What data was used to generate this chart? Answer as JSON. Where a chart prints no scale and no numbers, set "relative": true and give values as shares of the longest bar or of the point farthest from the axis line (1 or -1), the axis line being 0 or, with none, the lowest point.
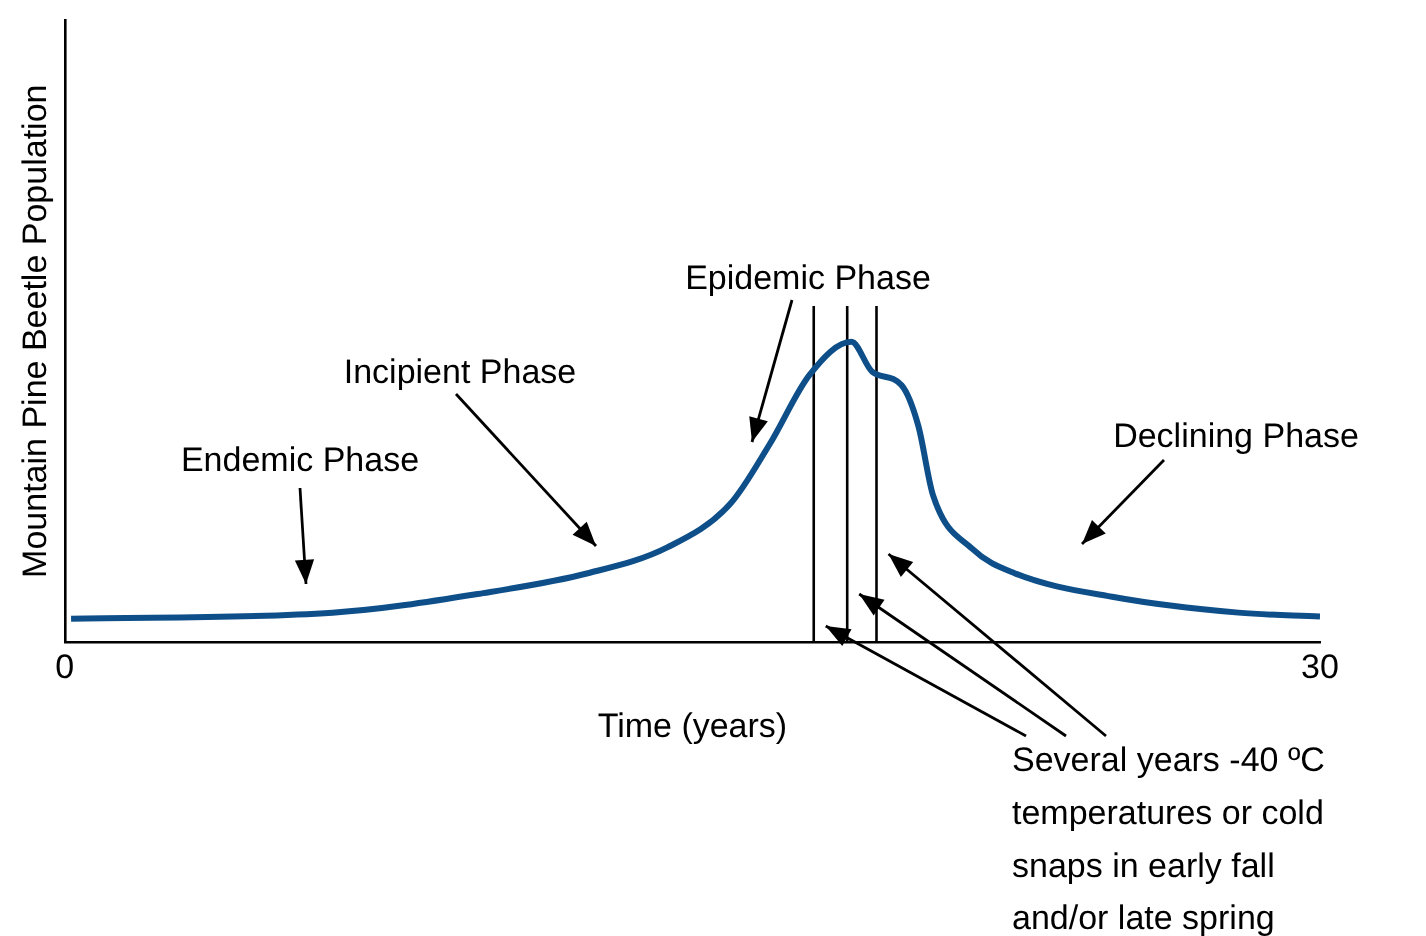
{
  "chart_data": {
    "type": "line",
    "relative": true,
    "xlabel": "Time (years)",
    "ylabel": "Mountain Pine Beetle Population",
    "xlim": [
      0,
      30
    ],
    "xticks": [
      0,
      30
    ],
    "grid": false,
    "legend": false,
    "marker": "none",
    "line_style": "solid",
    "series": [
      {
        "color": "#0e4f8a",
        "x": [
          0.15,
          6.4,
          10,
          12.5,
          14.4,
          15.9,
          16.85,
          17.8,
          18.8,
          19.3,
          20,
          20.4,
          20.75,
          21.7,
          22.7,
          25.1,
          28.05,
          30
        ],
        "values": [
          0.079,
          0.099,
          0.164,
          0.23,
          0.316,
          0.46,
          0.66,
          0.89,
          1,
          0.9,
          0.855,
          0.72,
          0.49,
          0.31,
          0.23,
          0.15,
          0.099,
          0.086
        ]
      }
    ],
    "ref_lines": [
      {
        "axis": "x",
        "value": 17.9,
        "color": "#000000"
      },
      {
        "axis": "x",
        "value": 18.7,
        "color": "#000000"
      },
      {
        "axis": "x",
        "value": 19.4,
        "color": "#000000"
      }
    ],
    "annotations": [
      "Endemic Phase",
      "Incipient Phase",
      "Epidemic Phase",
      "Declining Phase",
      "Several years -40 ºC\ntemperatures or cold\nsnaps in early fall\nand/or late spring"
    ]
  }
}
